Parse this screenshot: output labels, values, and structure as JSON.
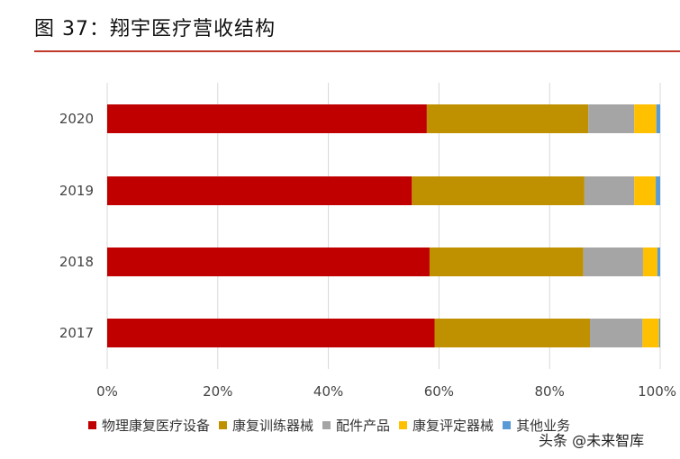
{
  "title": "图 37：翔宇医疗营收结构",
  "watermark": "头条 @未来智库",
  "chart_data": {
    "type": "bar",
    "orientation": "horizontal",
    "stacked": "percent",
    "categories": [
      "2020",
      "2019",
      "2018",
      "2017"
    ],
    "series": [
      {
        "name": "物理康复医疗设备",
        "color": "#c00000",
        "values": [
          57.8,
          55.1,
          58.3,
          59.2
        ]
      },
      {
        "name": "康复训练器械",
        "color": "#bf9000",
        "values": [
          29.2,
          31.2,
          27.8,
          28.1
        ]
      },
      {
        "name": "配件产品",
        "color": "#a5a5a5",
        "values": [
          8.3,
          9.0,
          10.8,
          9.5
        ]
      },
      {
        "name": "康复评定器械",
        "color": "#ffc000",
        "values": [
          4.0,
          3.9,
          2.6,
          3.0
        ]
      },
      {
        "name": "其他业务",
        "color": "#5b9bd5",
        "values": [
          0.7,
          0.8,
          0.5,
          0.2
        ]
      }
    ],
    "xlim": [
      0,
      100
    ],
    "x_ticks": [
      "0%",
      "20%",
      "40%",
      "60%",
      "80%",
      "100%"
    ],
    "grid": "vertical",
    "legend": "bottom"
  }
}
